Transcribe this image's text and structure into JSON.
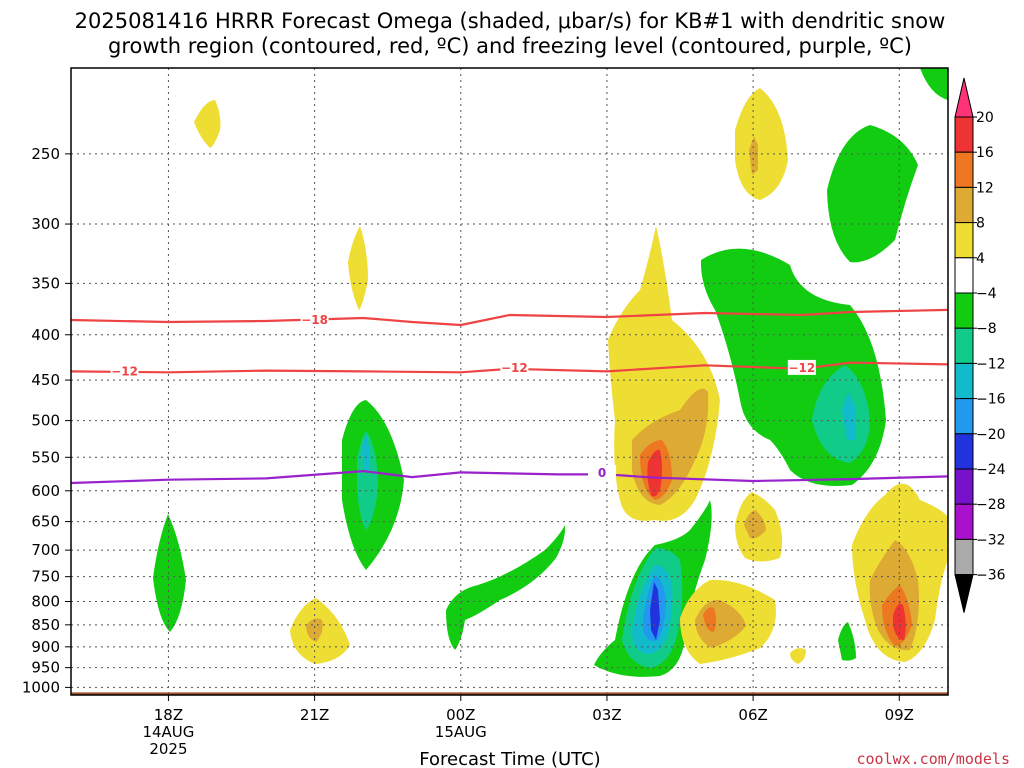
{
  "chart_data": {
    "type": "contour",
    "title_line1": "2025081416 HRRR Forecast Omega (shaded, μbar/s) for KB#1 with dendritic snow",
    "title_line2": "growth region (contoured, red, ºC) and freezing level (contoured, purple, ºC)",
    "xlabel": "Forecast Time (UTC)",
    "x_ticks": [
      {
        "label": "18Z",
        "sub1": "14AUG",
        "sub2": "2025",
        "hour": 18
      },
      {
        "label": "21Z",
        "sub1": "",
        "sub2": "",
        "hour": 21
      },
      {
        "label": "00Z",
        "sub1": "15AUG",
        "sub2": "",
        "hour": 24
      },
      {
        "label": "03Z",
        "sub1": "",
        "sub2": "",
        "hour": 27
      },
      {
        "label": "06Z",
        "sub1": "",
        "sub2": "",
        "hour": 30
      },
      {
        "label": "09Z",
        "sub1": "",
        "sub2": "",
        "hour": 33
      }
    ],
    "xlim": [
      16,
      34
    ],
    "y_ticks": [
      250,
      300,
      350,
      400,
      450,
      500,
      550,
      600,
      650,
      700,
      750,
      800,
      850,
      900,
      950,
      1000
    ],
    "ylim": [
      200,
      1020
    ],
    "y_scale": "log-pressure",
    "grid": true,
    "colorbar": {
      "levels": [
        "20",
        "16",
        "12",
        "8",
        "4",
        "−4",
        "−8",
        "−12",
        "−16",
        "−20",
        "−24",
        "−28",
        "−32",
        "−36"
      ],
      "colors": [
        "#ff3377",
        "#ee3333",
        "#ee7722",
        "#ddaa33",
        "#eedd33",
        "#ffffff",
        "#11cc11",
        "#11cc88",
        "#11bbcc",
        "#2299ee",
        "#2233dd",
        "#7711cc",
        "#aa11cc",
        "#aaaaaa",
        "#000000"
      ]
    },
    "contours": [
      {
        "name": "−18",
        "color": "#ee4444",
        "label_points": [
          [
            21,
            385
          ]
        ],
        "path": [
          [
            16,
            385
          ],
          [
            18,
            387
          ],
          [
            20,
            386
          ],
          [
            22,
            383
          ],
          [
            23,
            387
          ],
          [
            24,
            390
          ],
          [
            25,
            380
          ],
          [
            27,
            382
          ],
          [
            29,
            378
          ],
          [
            31,
            380
          ],
          [
            32,
            377
          ],
          [
            34,
            375
          ]
        ]
      },
      {
        "name": "−12",
        "color": "#ee4444",
        "label_points": [
          [
            17.1,
            440
          ],
          [
            25.1,
            436
          ],
          [
            31,
            436
          ]
        ],
        "path": [
          [
            16,
            440
          ],
          [
            18,
            441
          ],
          [
            20,
            439
          ],
          [
            22,
            440
          ],
          [
            24,
            441
          ],
          [
            25,
            437
          ],
          [
            27,
            440
          ],
          [
            29,
            433
          ],
          [
            31,
            437
          ],
          [
            32,
            430
          ],
          [
            34,
            432
          ]
        ]
      },
      {
        "name": "0",
        "color": "#9922cc",
        "label_points": [
          [
            26.9,
            573
          ]
        ],
        "path": [
          [
            16,
            588
          ],
          [
            18,
            583
          ],
          [
            20,
            581
          ],
          [
            22,
            570
          ],
          [
            23,
            579
          ],
          [
            24,
            572
          ],
          [
            26,
            575
          ],
          [
            27,
            575
          ],
          [
            28,
            580
          ],
          [
            30,
            585
          ],
          [
            32,
            582
          ],
          [
            34,
            578
          ]
        ]
      }
    ],
    "ground_level_hpa": 1000,
    "ground_color": "#a0522d",
    "credit": "coolwx.com/models"
  }
}
